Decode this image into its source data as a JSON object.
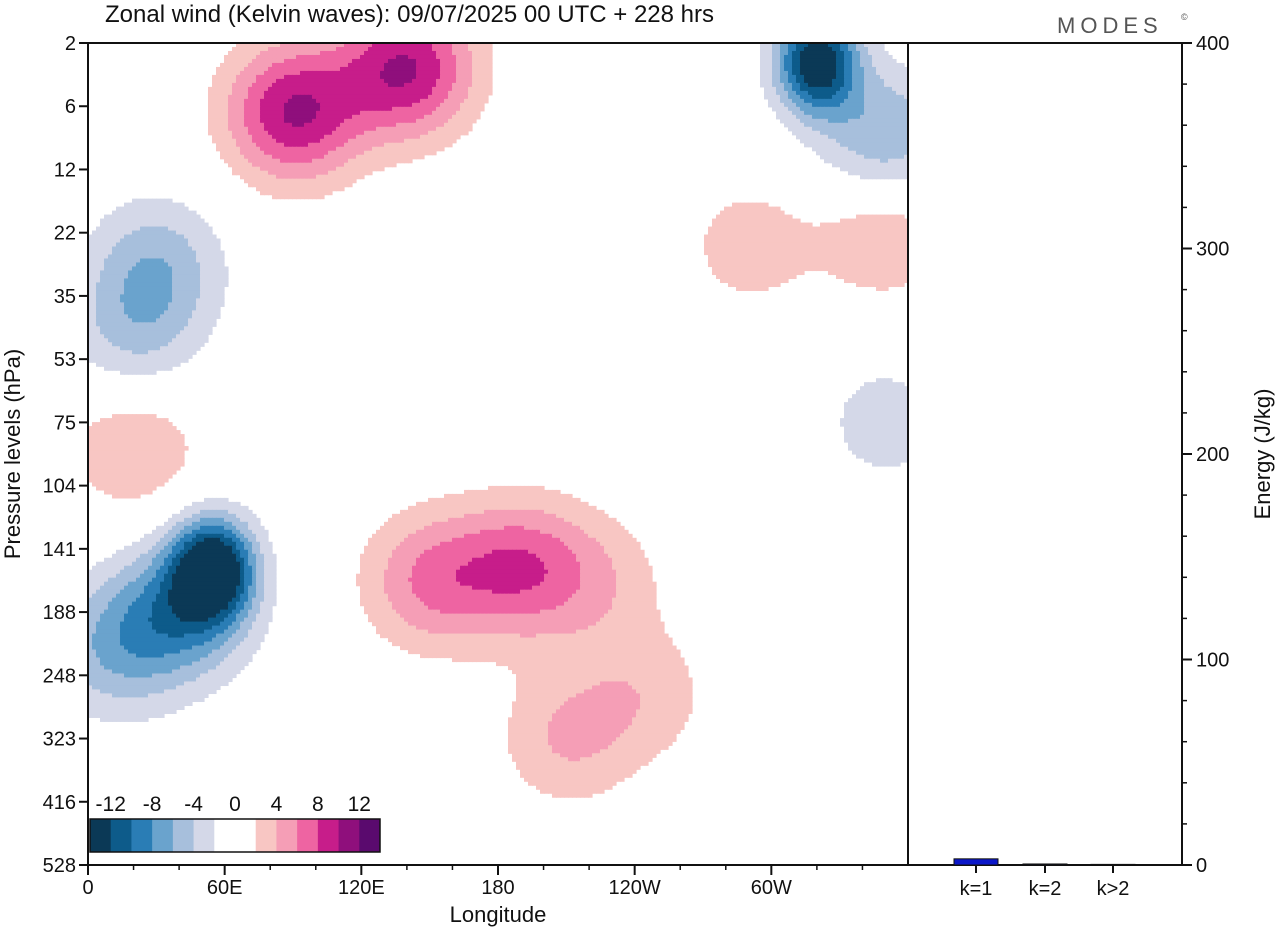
{
  "header": {
    "title": "Zonal wind (Kelvin waves):  09/07/2025  00 UTC  + 228 hrs",
    "brand": "MODES",
    "brand_mark": "©"
  },
  "chart_data": [
    {
      "type": "heatmap",
      "xlabel": "Longitude",
      "ylabel": "Pressure levels (hPa)",
      "x_ticks": [
        "0",
        "60E",
        "120E",
        "180",
        "120W",
        "60W"
      ],
      "x_tick_values": [
        0,
        60,
        120,
        180,
        240,
        300
      ],
      "xlim": [
        0,
        360
      ],
      "y_ticks": [
        "2",
        "6",
        "12",
        "22",
        "35",
        "53",
        "75",
        "104",
        "141",
        "188",
        "248",
        "323",
        "416",
        "528"
      ],
      "y_scale": "log-like, decreasing upward",
      "colorbar": {
        "labels": [
          "-12",
          "-8",
          "-4",
          "0",
          "4",
          "8",
          "12"
        ],
        "colors": [
          "#0b3956",
          "#0d5b8a",
          "#2a7db5",
          "#6aa3cd",
          "#a7bfdc",
          "#d4d8e8",
          "#ffffff",
          "#ffffff",
          "#f8c6c3",
          "#f59eb6",
          "#ee64a2",
          "#c71d8a",
          "#8f0f7c",
          "#5a0a6e"
        ]
      },
      "blobs": [
        {
          "lon": 55,
          "plev_index": 8.3,
          "value": -14
        },
        {
          "lon": 40,
          "plev_index": 9.0,
          "value": -8
        },
        {
          "lon": 30,
          "plev_index": 3.5,
          "value": -5
        },
        {
          "lon": 20,
          "plev_index": 4.6,
          "value": -4
        },
        {
          "lon": 10,
          "plev_index": 9.6,
          "value": -5
        },
        {
          "lon": 90,
          "plev_index": 1.1,
          "value": 10
        },
        {
          "lon": 140,
          "plev_index": 0.4,
          "value": 10
        },
        {
          "lon": 20,
          "plev_index": 6.4,
          "value": 4
        },
        {
          "lon": 150,
          "plev_index": 8.5,
          "value": 6
        },
        {
          "lon": 190,
          "plev_index": 8.3,
          "value": 7
        },
        {
          "lon": 225,
          "plev_index": 8.5,
          "value": 3
        },
        {
          "lon": 290,
          "plev_index": 3.2,
          "value": 3
        },
        {
          "lon": 350,
          "plev_index": 3.0,
          "value": 4
        },
        {
          "lon": 320,
          "plev_index": 0.3,
          "value": -14
        },
        {
          "lon": 350,
          "plev_index": 1.5,
          "value": -6
        },
        {
          "lon": 350,
          "plev_index": 6.0,
          "value": -3
        },
        {
          "lon": 210,
          "plev_index": 11.0,
          "value": 4
        },
        {
          "lon": 245,
          "plev_index": 10.3,
          "value": 3
        }
      ]
    },
    {
      "type": "bar",
      "categories": [
        "k=1",
        "k=2",
        "k>2"
      ],
      "values": [
        3,
        0.5,
        0.3
      ],
      "ylabel": "Energy (J/kg)",
      "ylim": [
        0,
        400
      ],
      "y_ticks": [
        "0",
        "100",
        "200",
        "300",
        "400"
      ],
      "y_tick_values": [
        0,
        100,
        200,
        300,
        400
      ],
      "bar_colors": [
        "#0b17c9",
        "#0b17c9",
        "#0b17c9"
      ]
    }
  ]
}
